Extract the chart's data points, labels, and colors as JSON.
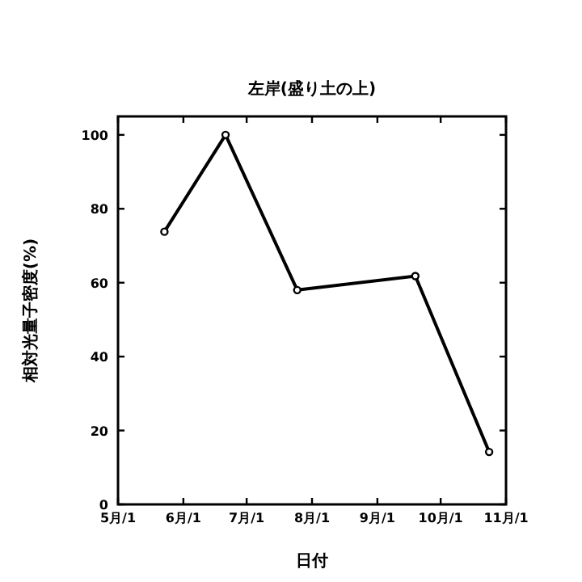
{
  "chart_data": {
    "type": "line",
    "title": "左岸(盛り土の上)",
    "xlabel": "日付",
    "ylabel": "相対光量子密度(%)",
    "x": [
      "--05-23",
      "--06-21",
      "--07-25",
      "--09-19",
      "--10-24"
    ],
    "series": [
      {
        "color": "#000000",
        "values": [
          73.8,
          100,
          58,
          61.8,
          14.2
        ]
      }
    ],
    "xlim": [
      "--05-01",
      "--11-01"
    ],
    "xticks": [
      {
        "value": "--05-01",
        "label": "5月/1"
      },
      {
        "value": "--06-01",
        "label": "6月/1"
      },
      {
        "value": "--07-01",
        "label": "7月/1"
      },
      {
        "value": "--08-01",
        "label": "8月/1"
      },
      {
        "value": "--09-01",
        "label": "9月/1"
      },
      {
        "value": "--10-01",
        "label": "10月/1"
      },
      {
        "value": "--11-01",
        "label": "11月/1"
      }
    ],
    "ylim": [
      0,
      105
    ],
    "yticks": [
      0,
      20,
      40,
      60,
      80,
      100
    ],
    "grid": false,
    "marker": "circle",
    "line_style": "solid"
  }
}
